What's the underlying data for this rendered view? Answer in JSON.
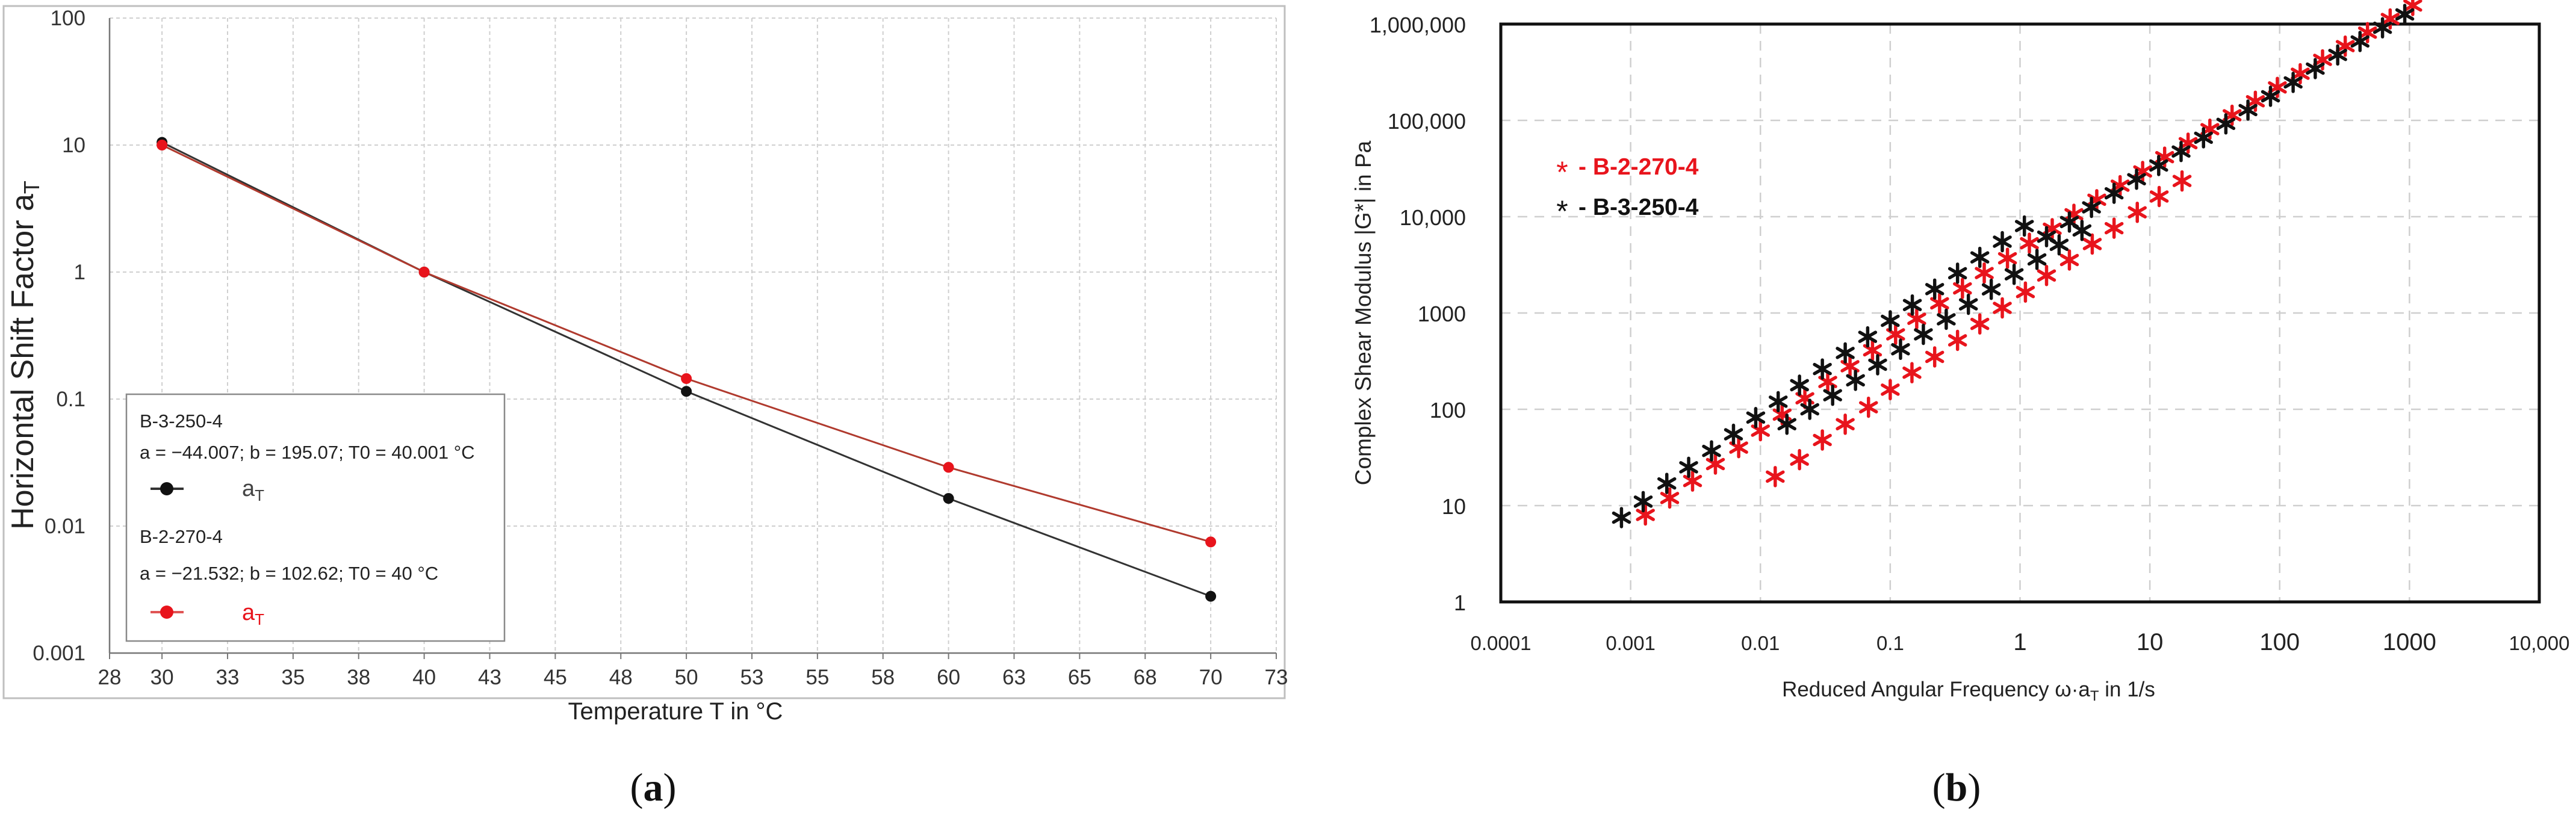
{
  "panels": {
    "a_label_open": "(",
    "a_label_letter": "a",
    "a_label_close": ")",
    "b_label_open": "(",
    "b_label_letter": "b",
    "b_label_close": ")"
  },
  "colors": {
    "red": "#e8141c",
    "black": "#111111",
    "grid": "#cfcfcf",
    "line_red": "#b03a2e",
    "line_black": "#333333"
  },
  "chart_data": [
    {
      "type": "line",
      "title": "",
      "xlabel": "Temperature T in °C",
      "ylabel": "Horizontal Shift Factor a",
      "ylabel_sub": "T",
      "x_ticks": [
        "28",
        "30",
        "33",
        "35",
        "38",
        "40",
        "43",
        "45",
        "48",
        "50",
        "53",
        "55",
        "58",
        "60",
        "63",
        "65",
        "68",
        "70",
        "73"
      ],
      "x_tick_values": [
        28,
        30,
        32.5,
        35,
        37.5,
        40,
        42.5,
        45,
        47.5,
        50,
        52.5,
        55,
        57.5,
        60,
        62.5,
        65,
        67.5,
        70,
        72.5
      ],
      "y_ticks": [
        "0.001",
        "0.01",
        "0.1",
        "1",
        "10",
        "100"
      ],
      "y_tick_values": [
        0.001,
        0.01,
        0.1,
        1,
        10,
        100
      ],
      "xlim": [
        28,
        72.5
      ],
      "ylim": [
        0.001,
        100
      ],
      "y_scale": "log",
      "grid": true,
      "legend_position": "bottom-left",
      "series": [
        {
          "name": "B-3-250-4",
          "params": "a = −44.007; b = 195.07; T0 = 40.001 °C",
          "marker_label": "a",
          "marker_sub": "T",
          "color": "#111111",
          "x": [
            30,
            40,
            50,
            60,
            70
          ],
          "y": [
            10.5,
            1.0,
            0.115,
            0.0165,
            0.0028
          ]
        },
        {
          "name": "B-2-270-4",
          "params": "a = −21.532; b = 102.62; T0 = 40 °C",
          "marker_label": "a",
          "marker_sub": "T",
          "color": "#e8141c",
          "x": [
            30,
            40,
            50,
            60,
            70
          ],
          "y": [
            10.0,
            1.0,
            0.145,
            0.029,
            0.0075
          ]
        }
      ]
    },
    {
      "type": "scatter",
      "title": "",
      "xlabel": "Reduced Angular Frequency ω·a",
      "xlabel_sub": "T",
      "xlabel_suffix": " in 1/s",
      "ylabel": "Complex Shear Modulus |G*| in Pa",
      "x_ticks": [
        "0.0001",
        "0.001",
        "0.01",
        "0.1",
        "1",
        "10",
        "100",
        "1000",
        "10,000"
      ],
      "x_tick_values": [
        0.0001,
        0.001,
        0.01,
        0.1,
        1,
        10,
        100,
        1000,
        10000
      ],
      "y_ticks": [
        "1",
        "10",
        "100",
        "1000",
        "10,000",
        "100,000",
        "1,000,000"
      ],
      "y_tick_values": [
        1,
        10,
        100,
        1000,
        10000,
        100000,
        1000000
      ],
      "xlim": [
        0.0001,
        10000
      ],
      "ylim": [
        1,
        1000000
      ],
      "x_scale": "log",
      "y_scale": "log",
      "grid": true,
      "legend_position": "top-left",
      "series": [
        {
          "name": "B-2-270-4",
          "legend": "- B-2-270-4",
          "marker": "*",
          "color": "#e8141c",
          "x": [
            0.0013,
            0.002,
            0.003,
            0.0045,
            0.0068,
            0.01,
            0.0147,
            0.022,
            0.033,
            0.049,
            0.073,
            0.11,
            0.16,
            0.24,
            0.36,
            0.53,
            0.8,
            1.18,
            1.77,
            2.6,
            3.9,
            5.9,
            8.8,
            13,
            19.7,
            29,
            43,
            65,
            96,
            144,
            214,
            320,
            475,
            710,
            1060,
            0.013,
            0.02,
            0.03,
            0.045,
            0.068,
            0.1,
            0.147,
            0.22,
            0.33,
            0.49,
            0.73,
            1.1,
            1.6,
            2.4,
            3.6,
            5.3,
            8,
            11.8,
            17.7
          ],
          "y": [
            8,
            12,
            18,
            27,
            40,
            60,
            88,
            130,
            192,
            280,
            410,
            600,
            870,
            1260,
            1800,
            2600,
            3700,
            5300,
            7500,
            10600,
            15000,
            21000,
            29500,
            41500,
            58000,
            81000,
            113000,
            158000,
            220000,
            305000,
            425000,
            590000,
            815000,
            1130000,
            1560000,
            20,
            30,
            48,
            70,
            105,
            160,
            240,
            350,
            520,
            770,
            1130,
            1650,
            2450,
            3550,
            5200,
            7600,
            11100,
            16200,
            23500
          ]
        },
        {
          "name": "B-3-250-4",
          "legend": "- B-3-250-4",
          "marker": "*",
          "color": "#111111",
          "x": [
            0.00085,
            0.00125,
            0.0019,
            0.0028,
            0.0042,
            0.0062,
            0.0092,
            0.0137,
            0.02,
            0.03,
            0.045,
            0.067,
            0.1,
            0.148,
            0.22,
            0.33,
            0.49,
            0.73,
            1.08,
            1.6,
            2.4,
            3.55,
            5.3,
            7.9,
            11.7,
            17.4,
            25.9,
            38.5,
            57,
            85,
            127,
            188,
            280,
            416,
            620,
            920,
            0.016,
            0.024,
            0.036,
            0.054,
            0.08,
            0.12,
            0.18,
            0.27,
            0.4,
            0.6,
            0.9,
            1.35,
            2,
            3
          ],
          "y": [
            7.5,
            11,
            17,
            25,
            37,
            55,
            82,
            120,
            178,
            262,
            385,
            565,
            830,
            1210,
            1770,
            2590,
            3780,
            5500,
            8000,
            6200,
            8800,
            12500,
            17500,
            24500,
            34000,
            47500,
            66000,
            92000,
            128000,
            178000,
            248000,
            345000,
            478000,
            660000,
            915000,
            1260000,
            70,
            100,
            140,
            200,
            290,
            420,
            600,
            860,
            1230,
            1760,
            2520,
            3600,
            5100,
            7200
          ]
        }
      ]
    }
  ]
}
